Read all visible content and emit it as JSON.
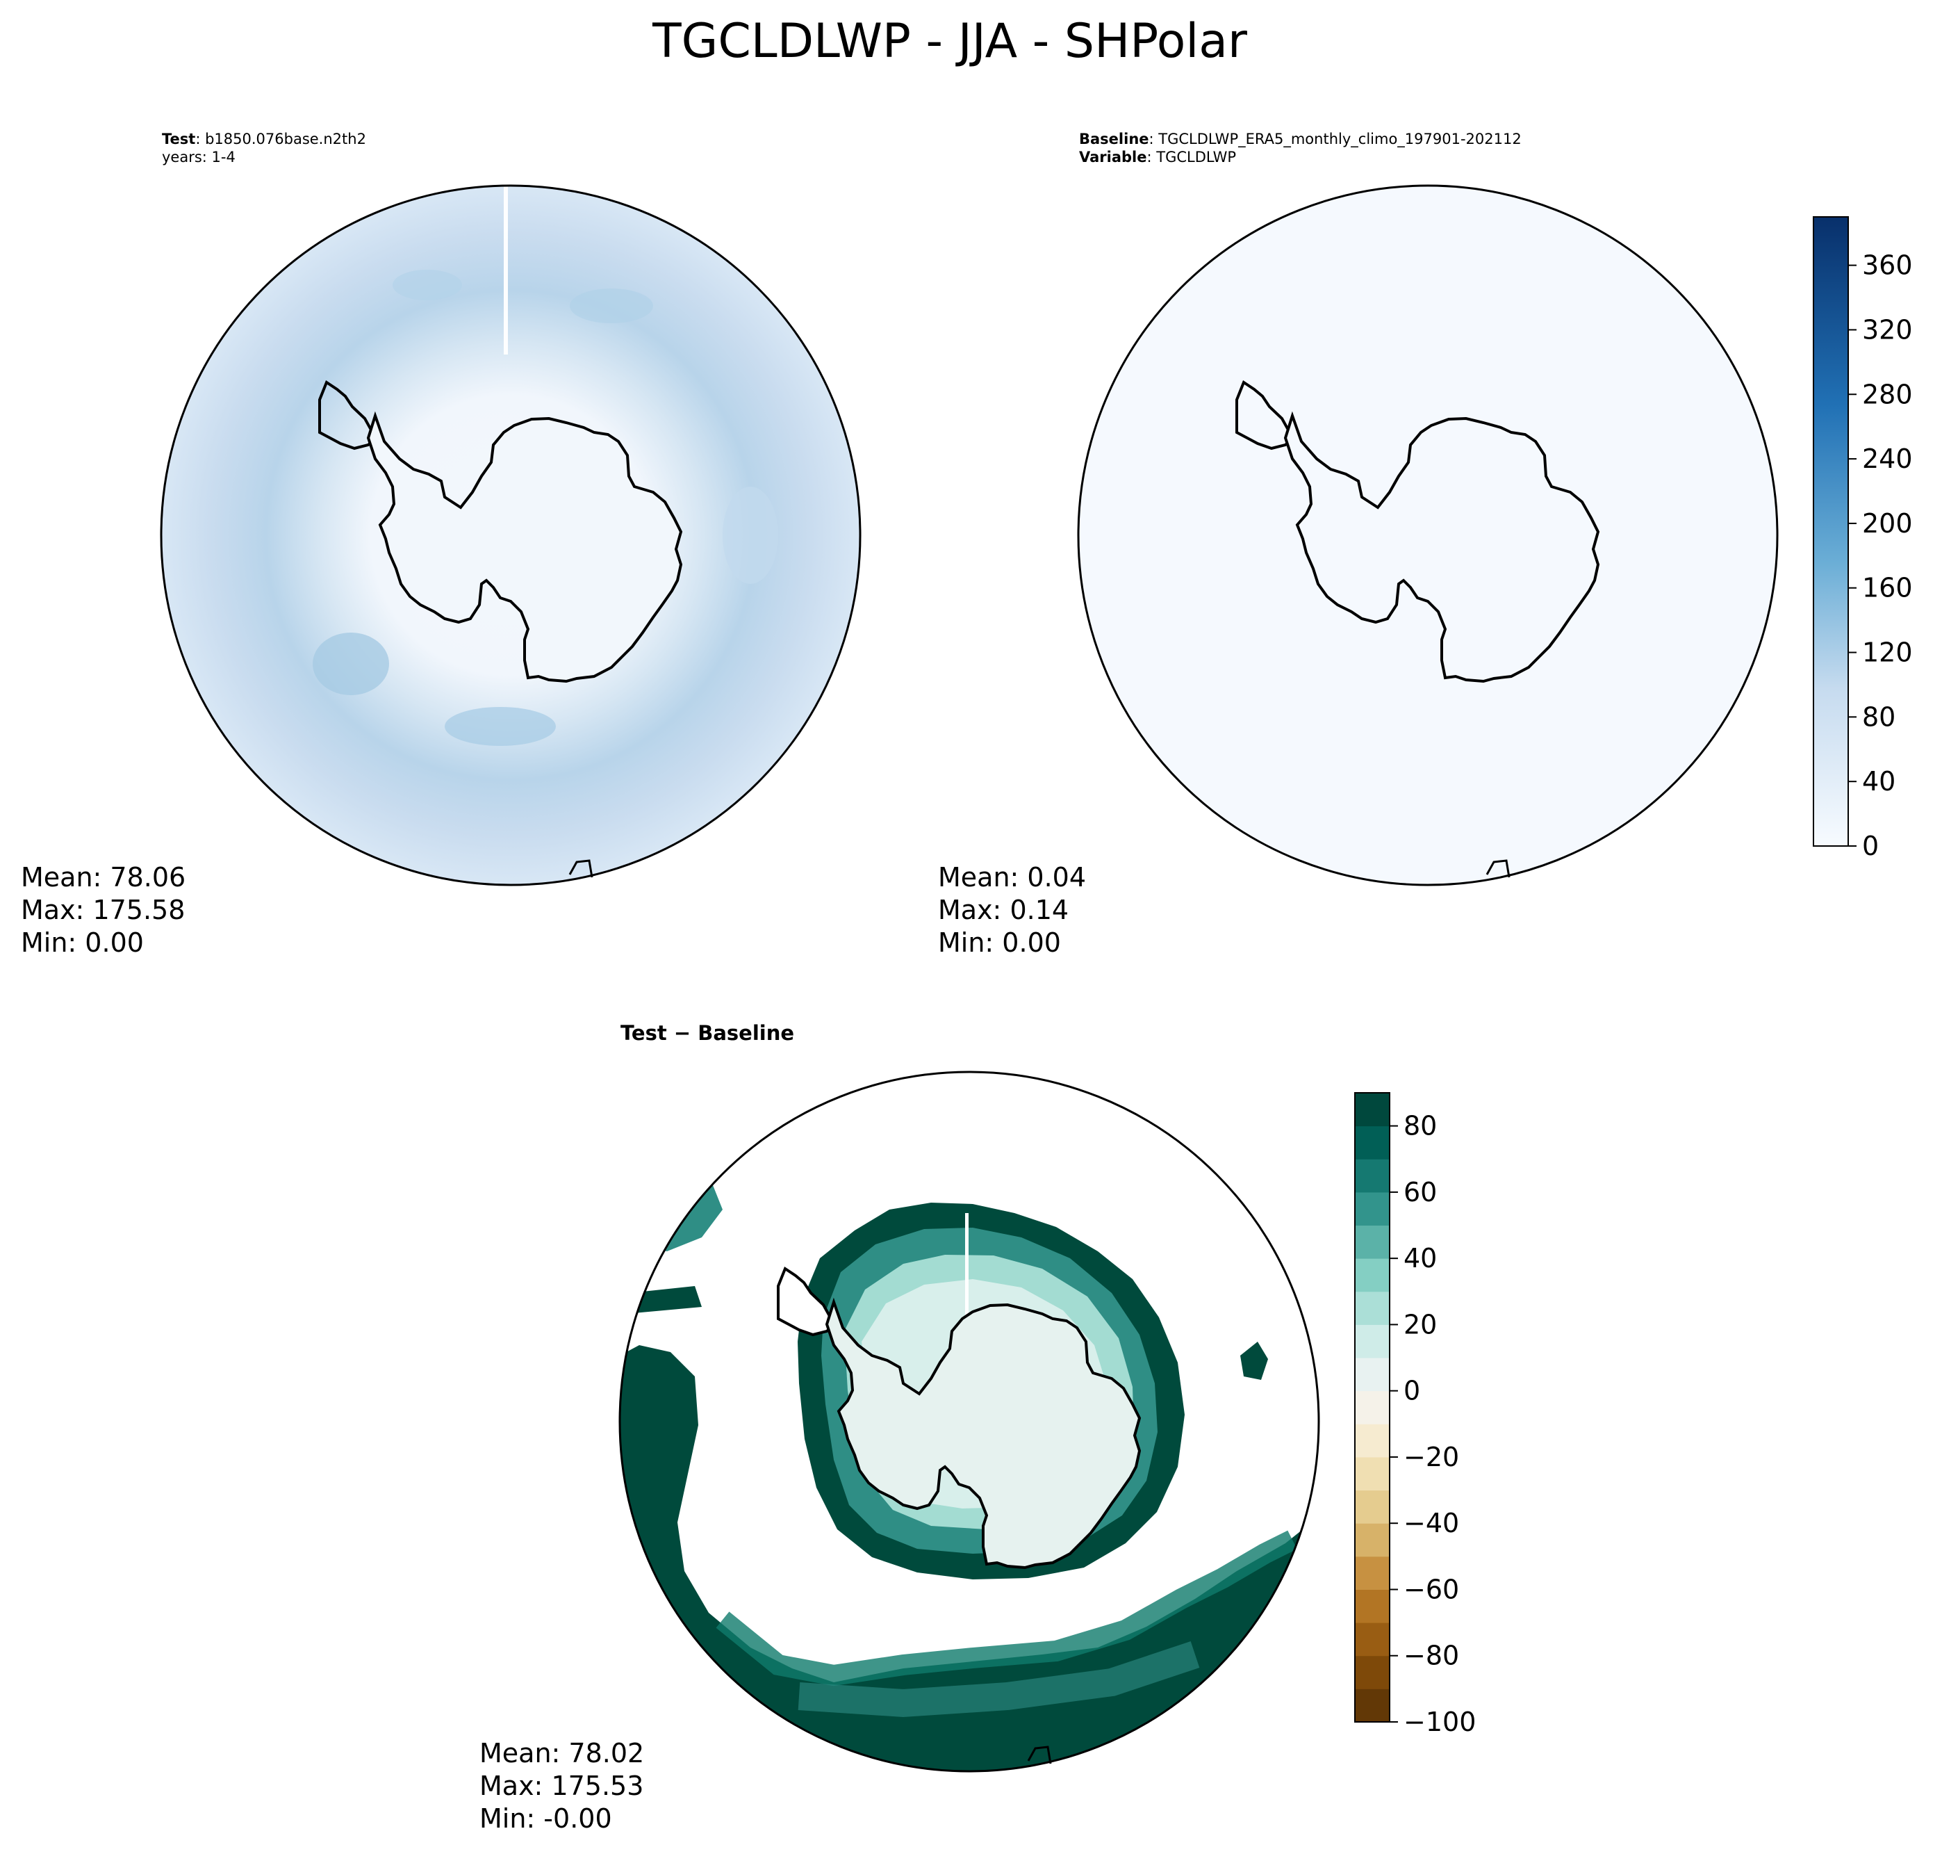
{
  "figure": {
    "title": "TGCLDLWP - JJA - SHPolar"
  },
  "panels": {
    "test": {
      "case_label": "Test",
      "case_name": "b1850.076base.n2th2",
      "years_line": "years: 1-4",
      "stats": {
        "mean": "Mean: 78.06",
        "max": "Max: 175.58",
        "min": "Min:  0.00"
      }
    },
    "baseline": {
      "case_label": "Baseline",
      "case_name": "TGCLDLWP_ERA5_monthly_climo_197901-202112",
      "variable_label": "Variable",
      "variable_name": "TGCLDLWP",
      "stats": {
        "mean": "Mean:  0.04",
        "max": "Max:  0.14",
        "min": "Min:  0.00"
      }
    },
    "difference": {
      "title": "Test − Baseline",
      "stats": {
        "mean": "Mean: 78.02",
        "max": "Max: 175.53",
        "min": "Min: -0.00"
      }
    }
  },
  "colorbars": {
    "main": {
      "colormap": "Blues",
      "range": [
        0,
        390
      ],
      "ticks": [
        "0",
        "40",
        "80",
        "120",
        "160",
        "200",
        "240",
        "280",
        "320",
        "360"
      ],
      "tick_values": [
        0,
        40,
        80,
        120,
        160,
        200,
        240,
        280,
        320,
        360
      ],
      "colors": [
        "#f7fbff",
        "#deebf7",
        "#c6dbef",
        "#9ecae1",
        "#6baed6",
        "#4292c6",
        "#2171b5",
        "#08519c",
        "#08306b"
      ]
    },
    "diff": {
      "colormap": "BrBG",
      "range": [
        -100,
        90
      ],
      "ticks": [
        "−100",
        "−80",
        "−60",
        "−40",
        "−20",
        "0",
        "20",
        "40",
        "60",
        "80"
      ],
      "tick_values": [
        -100,
        -80,
        -60,
        -40,
        -20,
        0,
        20,
        40,
        60,
        80
      ],
      "colors": [
        "#543005",
        "#8c510a",
        "#bf812d",
        "#dfc27d",
        "#f6e8c3",
        "#f5f5f5",
        "#c7eae5",
        "#80cdc1",
        "#35978f",
        "#01665e",
        "#003c30"
      ]
    }
  },
  "chart_data": [
    {
      "type": "heatmap",
      "name": "Test",
      "projection": "South polar stereographic",
      "range": [
        0,
        390
      ],
      "mean": 78.06,
      "max": 175.58,
      "min": 0.0
    },
    {
      "type": "heatmap",
      "name": "Baseline",
      "projection": "South polar stereographic",
      "range": [
        0,
        390
      ],
      "mean": 0.04,
      "max": 0.14,
      "min": 0.0
    },
    {
      "type": "heatmap",
      "name": "Test - Baseline",
      "projection": "South polar stereographic",
      "range": [
        -100,
        90
      ],
      "mean": 78.02,
      "max": 175.53,
      "min": -0.0
    }
  ]
}
